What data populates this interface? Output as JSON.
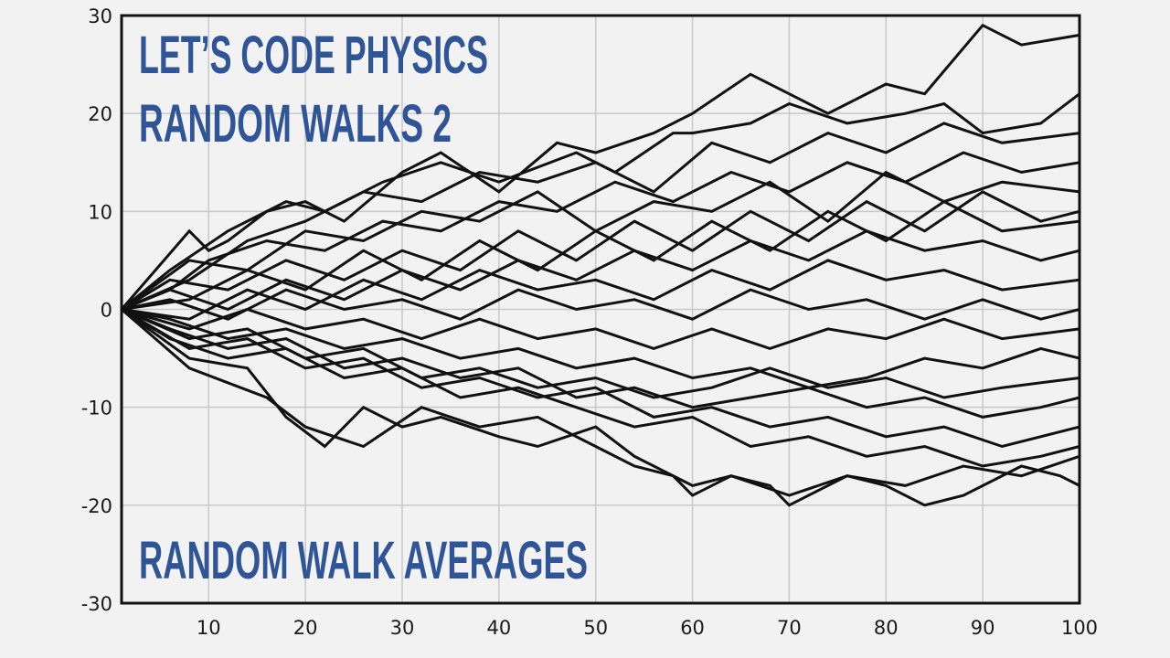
{
  "overlay": {
    "line1": "LET’S CODE PHYSICS",
    "line2": "RANDOM WALKS 2",
    "line3": "RANDOM WALK AVERAGES"
  },
  "colors": {
    "background": "#f2f2f3",
    "plot_background": "#f2f2f3",
    "grid": "#c8c8c8",
    "axis": "#111111",
    "series": "#111111",
    "overlay_text": "#2f5597"
  },
  "chart_data": {
    "type": "line",
    "title": "",
    "xlabel": "",
    "ylabel": "",
    "xlim": [
      1,
      100
    ],
    "ylim": [
      -30,
      30
    ],
    "x_ticks": [
      10,
      20,
      30,
      40,
      50,
      60,
      70,
      80,
      90,
      100
    ],
    "y_ticks": [
      30,
      20,
      10,
      0,
      -10,
      -20,
      -30
    ],
    "grid": true,
    "legend": "none",
    "series": [
      {
        "x": [
          1,
          8,
          10,
          12,
          16,
          20,
          24,
          30,
          34,
          40,
          46,
          50,
          56,
          60,
          66,
          70,
          74,
          80,
          84,
          90,
          94,
          100
        ],
        "values": [
          0,
          8,
          6,
          7,
          10,
          11,
          9,
          14,
          16,
          12,
          17,
          16,
          18,
          20,
          24,
          22,
          20,
          23,
          22,
          29,
          27,
          28
        ]
      },
      {
        "x": [
          1,
          6,
          12,
          18,
          22,
          28,
          34,
          40,
          48,
          52,
          58,
          60,
          66,
          70,
          76,
          82,
          86,
          90,
          96,
          100
        ],
        "values": [
          0,
          4,
          8,
          11,
          10,
          13,
          15,
          13,
          16,
          14,
          18,
          18,
          19,
          21,
          19,
          20,
          21,
          18,
          19,
          22
        ]
      },
      {
        "x": [
          1,
          8,
          14,
          20,
          26,
          32,
          38,
          44,
          50,
          56,
          62,
          68,
          74,
          80,
          86,
          92,
          100
        ],
        "values": [
          0,
          3,
          7,
          9,
          12,
          11,
          14,
          13,
          15,
          12,
          17,
          15,
          18,
          16,
          19,
          17,
          18
        ]
      },
      {
        "x": [
          1,
          6,
          10,
          16,
          22,
          28,
          34,
          40,
          46,
          52,
          58,
          64,
          70,
          76,
          82,
          88,
          94,
          100
        ],
        "values": [
          0,
          2,
          5,
          7,
          6,
          9,
          8,
          11,
          10,
          13,
          11,
          14,
          12,
          15,
          13,
          16,
          14,
          15
        ]
      },
      {
        "x": [
          1,
          8,
          14,
          20,
          26,
          32,
          38,
          44,
          50,
          56,
          62,
          68,
          74,
          80,
          86,
          92,
          100
        ],
        "values": [
          0,
          5,
          4,
          8,
          7,
          10,
          9,
          12,
          8,
          11,
          10,
          13,
          9,
          14,
          11,
          13,
          12
        ]
      },
      {
        "x": [
          1,
          6,
          12,
          18,
          24,
          30,
          36,
          42,
          48,
          54,
          60,
          66,
          72,
          78,
          84,
          90,
          96,
          100
        ],
        "values": [
          0,
          3,
          2,
          5,
          3,
          6,
          4,
          8,
          5,
          9,
          6,
          10,
          7,
          11,
          8,
          12,
          9,
          10
        ]
      },
      {
        "x": [
          1,
          8,
          14,
          20,
          26,
          32,
          38,
          44,
          50,
          56,
          62,
          68,
          74,
          80,
          86,
          92,
          100
        ],
        "values": [
          0,
          1,
          4,
          2,
          6,
          3,
          7,
          4,
          8,
          5,
          9,
          6,
          10,
          7,
          11,
          8,
          9
        ]
      },
      {
        "x": [
          1,
          6,
          12,
          18,
          24,
          30,
          36,
          42,
          48,
          54,
          60,
          66,
          72,
          78,
          84,
          90,
          96,
          100
        ],
        "values": [
          0,
          2,
          0,
          3,
          1,
          4,
          2,
          5,
          3,
          6,
          4,
          7,
          5,
          8,
          6,
          7,
          5,
          6
        ]
      },
      {
        "x": [
          1,
          8,
          14,
          20,
          26,
          32,
          38,
          44,
          50,
          56,
          62,
          68,
          74,
          80,
          86,
          92,
          100
        ],
        "values": [
          0,
          -1,
          2,
          0,
          3,
          1,
          4,
          2,
          3,
          1,
          4,
          2,
          5,
          3,
          4,
          2,
          3
        ]
      },
      {
        "x": [
          1,
          6,
          12,
          18,
          24,
          30,
          36,
          42,
          48,
          54,
          60,
          66,
          72,
          78,
          84,
          90,
          96,
          100
        ],
        "values": [
          0,
          1,
          -1,
          2,
          0,
          1,
          -1,
          2,
          0,
          1,
          -1,
          2,
          0,
          1,
          -1,
          1,
          -1,
          0
        ]
      },
      {
        "x": [
          1,
          8,
          14,
          20,
          26,
          32,
          38,
          44,
          50,
          56,
          62,
          68,
          74,
          80,
          86,
          92,
          100
        ],
        "values": [
          0,
          -2,
          0,
          -2,
          -1,
          -3,
          -1,
          -3,
          -2,
          -4,
          -2,
          -4,
          -2,
          -3,
          -1,
          -3,
          -2
        ]
      },
      {
        "x": [
          1,
          6,
          12,
          18,
          24,
          30,
          36,
          42,
          48,
          54,
          60,
          66,
          72,
          78,
          84,
          90,
          96,
          100
        ],
        "values": [
          0,
          -1,
          -3,
          -2,
          -4,
          -3,
          -5,
          -4,
          -6,
          -5,
          -7,
          -6,
          -8,
          -7,
          -5,
          -6,
          -4,
          -5
        ]
      },
      {
        "x": [
          1,
          8,
          14,
          20,
          26,
          32,
          38,
          44,
          50,
          56,
          62,
          68,
          74,
          80,
          86,
          92,
          100
        ],
        "values": [
          0,
          -3,
          -2,
          -5,
          -4,
          -7,
          -6,
          -8,
          -7,
          -9,
          -8,
          -6,
          -8,
          -7,
          -9,
          -8,
          -7
        ]
      },
      {
        "x": [
          1,
          6,
          12,
          18,
          24,
          30,
          36,
          42,
          48,
          54,
          60,
          66,
          72,
          78,
          84,
          90,
          96,
          100
        ],
        "values": [
          0,
          -2,
          -4,
          -3,
          -6,
          -5,
          -7,
          -6,
          -9,
          -8,
          -10,
          -9,
          -8,
          -10,
          -9,
          -11,
          -10,
          -9
        ]
      },
      {
        "x": [
          1,
          8,
          14,
          20,
          26,
          32,
          38,
          44,
          50,
          56,
          62,
          68,
          74,
          80,
          86,
          92,
          100
        ],
        "values": [
          0,
          -4,
          -3,
          -6,
          -5,
          -8,
          -7,
          -9,
          -8,
          -11,
          -10,
          -12,
          -11,
          -13,
          -12,
          -14,
          -12
        ]
      },
      {
        "x": [
          1,
          6,
          12,
          18,
          24,
          30,
          36,
          42,
          48,
          54,
          60,
          66,
          72,
          78,
          84,
          90,
          96,
          100
        ],
        "values": [
          0,
          -3,
          -5,
          -4,
          -7,
          -6,
          -9,
          -8,
          -10,
          -12,
          -11,
          -14,
          -13,
          -15,
          -14,
          -16,
          -15,
          -14
        ]
      },
      {
        "x": [
          1,
          8,
          14,
          18,
          22,
          26,
          30,
          34,
          40,
          44,
          50,
          54,
          60,
          64,
          70,
          76,
          82,
          88,
          94,
          100
        ],
        "values": [
          0,
          -5,
          -6,
          -11,
          -14,
          -10,
          -12,
          -11,
          -13,
          -14,
          -12,
          -15,
          -18,
          -17,
          -19,
          -17,
          -18,
          -16,
          -17,
          -15
        ]
      },
      {
        "x": [
          1,
          8,
          16,
          20,
          26,
          32,
          38,
          44,
          50,
          54,
          58,
          60,
          64,
          68,
          70,
          76,
          80,
          84,
          88,
          94,
          98,
          100
        ],
        "values": [
          0,
          -6,
          -9,
          -12,
          -14,
          -10,
          -12,
          -11,
          -14,
          -16,
          -17,
          -19,
          -17,
          -18,
          -20,
          -17,
          -18,
          -20,
          -19,
          -16,
          -17,
          -18
        ]
      }
    ]
  }
}
